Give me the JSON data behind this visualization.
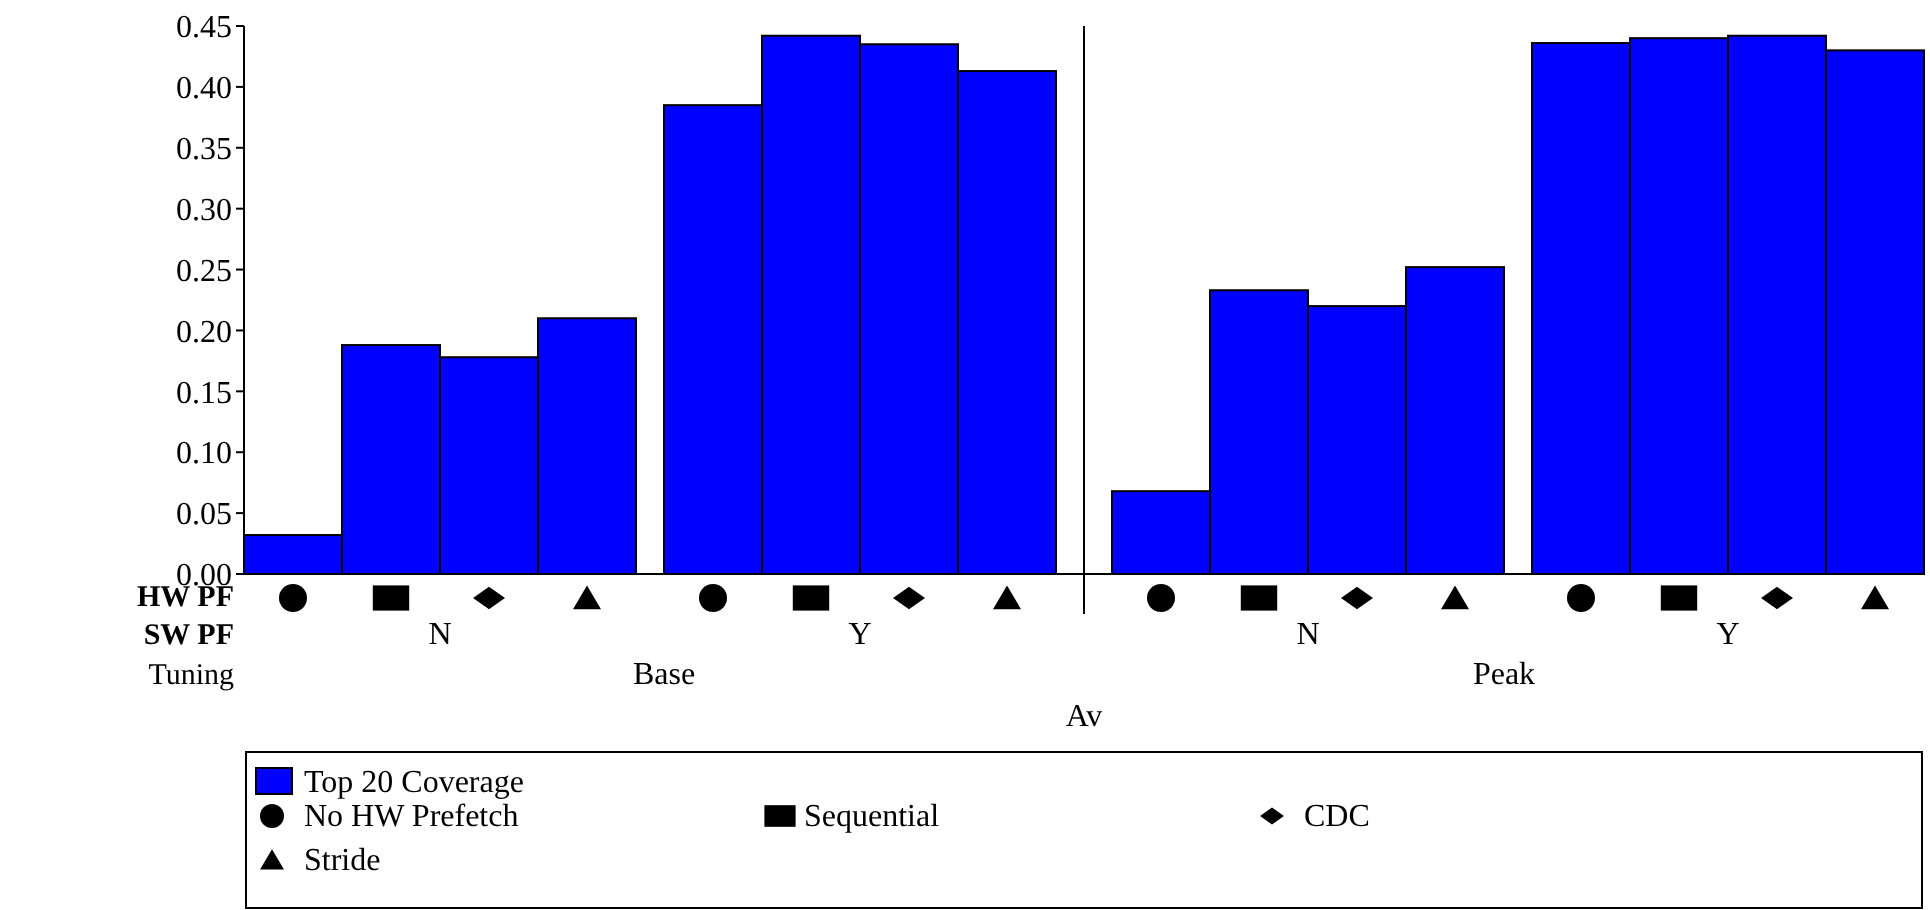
{
  "chart_data": {
    "type": "bar",
    "xlabel": "Av",
    "categories": [
      null,
      null,
      null,
      null,
      null,
      null,
      null,
      null,
      null,
      null,
      null,
      null,
      null,
      null,
      null,
      null
    ],
    "series": [
      {
        "name": "Top 20 Coverage",
        "color": "#0000ff",
        "values": [
          0.032,
          0.188,
          0.178,
          0.21,
          0.385,
          0.442,
          0.435,
          0.413,
          0.068,
          0.233,
          0.22,
          0.252,
          0.436,
          0.44,
          0.442,
          0.43
        ]
      }
    ],
    "ylim": [
      0,
      0.45
    ],
    "yticks": [
      {
        "value": 0,
        "label": "0.00"
      },
      0.05,
      {
        "value": 0.1,
        "label": "0.10"
      },
      0.15,
      {
        "value": 0.2,
        "label": "0.20"
      },
      0.25,
      {
        "value": 0.3,
        "label": "0.30"
      },
      0.35,
      {
        "value": 0.4,
        "label": "0.40"
      },
      0.45
    ],
    "grid": false,
    "legend": "bottom",
    "annotations": [
      "HW PF",
      "SW PF",
      "Tuning",
      "N",
      "Y",
      "N",
      "Y",
      "Base",
      "Peak",
      "No HW Prefetch",
      "Sequential",
      "CDC",
      "Stride"
    ]
  }
}
